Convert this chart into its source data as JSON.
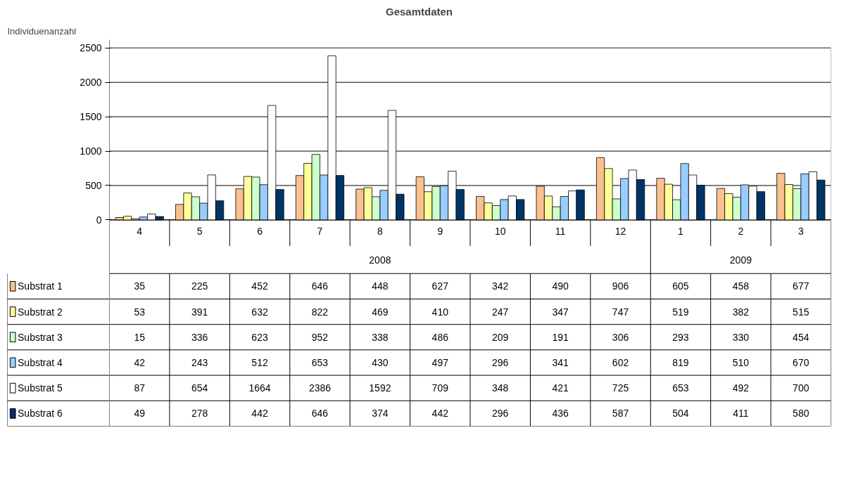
{
  "chart_data": {
    "type": "bar",
    "title": "Gesamtdaten",
    "ylabel": "Individuenanzahl",
    "categories": [
      "4",
      "5",
      "6",
      "7",
      "8",
      "9",
      "10",
      "11",
      "12",
      "1",
      "2",
      "3"
    ],
    "annotations": [
      "2008",
      "2009"
    ],
    "series": [
      {
        "name": "Substrat 1",
        "color": "#fac090",
        "values": [
          35,
          225,
          452,
          646,
          448,
          627,
          342,
          490,
          906,
          605,
          458,
          677
        ]
      },
      {
        "name": "Substrat 2",
        "color": "#ffff99",
        "values": [
          53,
          391,
          632,
          822,
          469,
          410,
          247,
          347,
          747,
          519,
          382,
          515
        ]
      },
      {
        "name": "Substrat 3",
        "color": "#ccffcc",
        "values": [
          15,
          336,
          623,
          952,
          338,
          486,
          209,
          191,
          306,
          293,
          330,
          454
        ]
      },
      {
        "name": "Substrat 4",
        "color": "#99ccff",
        "values": [
          42,
          243,
          512,
          653,
          430,
          497,
          296,
          341,
          602,
          819,
          510,
          670
        ]
      },
      {
        "name": "Substrat 5",
        "color": "#ffffff",
        "values": [
          87,
          654,
          1664,
          2386,
          1592,
          709,
          348,
          421,
          725,
          653,
          492,
          700
        ]
      },
      {
        "name": "Substrat 6",
        "color": "#003366",
        "values": [
          49,
          278,
          442,
          646,
          374,
          442,
          296,
          436,
          587,
          504,
          411,
          580
        ]
      }
    ],
    "ylim": [
      0,
      2500
    ],
    "yticks": [
      0,
      500,
      1000,
      1500,
      2000,
      2500
    ],
    "grid": "y",
    "legend": "bottom",
    "data_labels": true
  }
}
